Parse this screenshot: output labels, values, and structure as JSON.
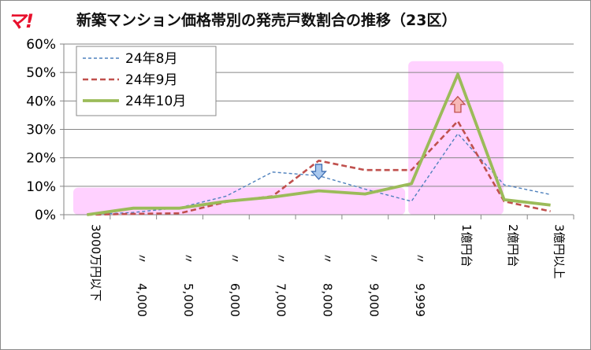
{
  "logo": "マ!",
  "title": "新築マンション価格帯別の発売戸数割合の推移（23区）",
  "colors": {
    "aug": "#4f81bd",
    "sep": "#c0504d",
    "oct": "#9bbb59",
    "highlight": "#ff99ff",
    "grid": "#868686"
  },
  "chart_data": {
    "type": "line",
    "title": "新築マンション価格帯別の発売戸数割合の推移（23区）",
    "xlabel": "",
    "ylabel": "",
    "categories": [
      "3000万円以下",
      "〃 4,000",
      "〃 5,000",
      "〃 6,000",
      "〃 7,000",
      "〃 8,000",
      "〃 9,000",
      "〃 9,999",
      "1億円台",
      "2億円台",
      "3億円以上"
    ],
    "category_labels": [
      {
        "ditto": "",
        "text": "3000万円以下"
      },
      {
        "ditto": "〃",
        "text": "4,000"
      },
      {
        "ditto": "〃",
        "text": "5,000"
      },
      {
        "ditto": "〃",
        "text": "6,000"
      },
      {
        "ditto": "〃",
        "text": "7,000"
      },
      {
        "ditto": "〃",
        "text": "8,000"
      },
      {
        "ditto": "〃",
        "text": "9,000"
      },
      {
        "ditto": "〃",
        "text": "9,999"
      },
      {
        "ditto": "",
        "text": "1億円台"
      },
      {
        "ditto": "",
        "text": "2億円台"
      },
      {
        "ditto": "",
        "text": "3億円以上"
      }
    ],
    "yticks": [
      "0%",
      "10%",
      "20%",
      "30%",
      "40%",
      "50%",
      "60%"
    ],
    "ylim": [
      0,
      60
    ],
    "grid": true,
    "legend_position": "top-left",
    "series": [
      {
        "name": "24年8月",
        "style": "dashed-thin",
        "values": [
          0.0,
          0.8,
          2.5,
          6.5,
          15.0,
          13.7,
          9.0,
          4.7,
          28.5,
          10.5,
          7.1
        ]
      },
      {
        "name": "24年9月",
        "style": "dashed-thick",
        "values": [
          0.0,
          0.3,
          0.5,
          4.5,
          6.5,
          19.0,
          15.7,
          15.7,
          32.9,
          4.7,
          1.2
        ]
      },
      {
        "name": "24年10月",
        "style": "solid-thick",
        "values": [
          0.0,
          2.3,
          2.3,
          4.7,
          6.2,
          8.4,
          7.3,
          10.9,
          49.4,
          5.3,
          3.4
        ]
      }
    ],
    "annotations": [
      {
        "type": "highlight",
        "category_range": [
          "3000万円以下",
          "〃 9,999"
        ],
        "ylim": [
          0,
          9.5
        ]
      },
      {
        "type": "highlight",
        "category_range": [
          "〃 9,999",
          "1億円台"
        ],
        "ylim": [
          0,
          54
        ]
      },
      {
        "type": "arrow-down",
        "category": "〃 8,000",
        "value": 15.5
      },
      {
        "type": "arrow-up",
        "category": "1億円台",
        "value": 38.5
      }
    ]
  }
}
